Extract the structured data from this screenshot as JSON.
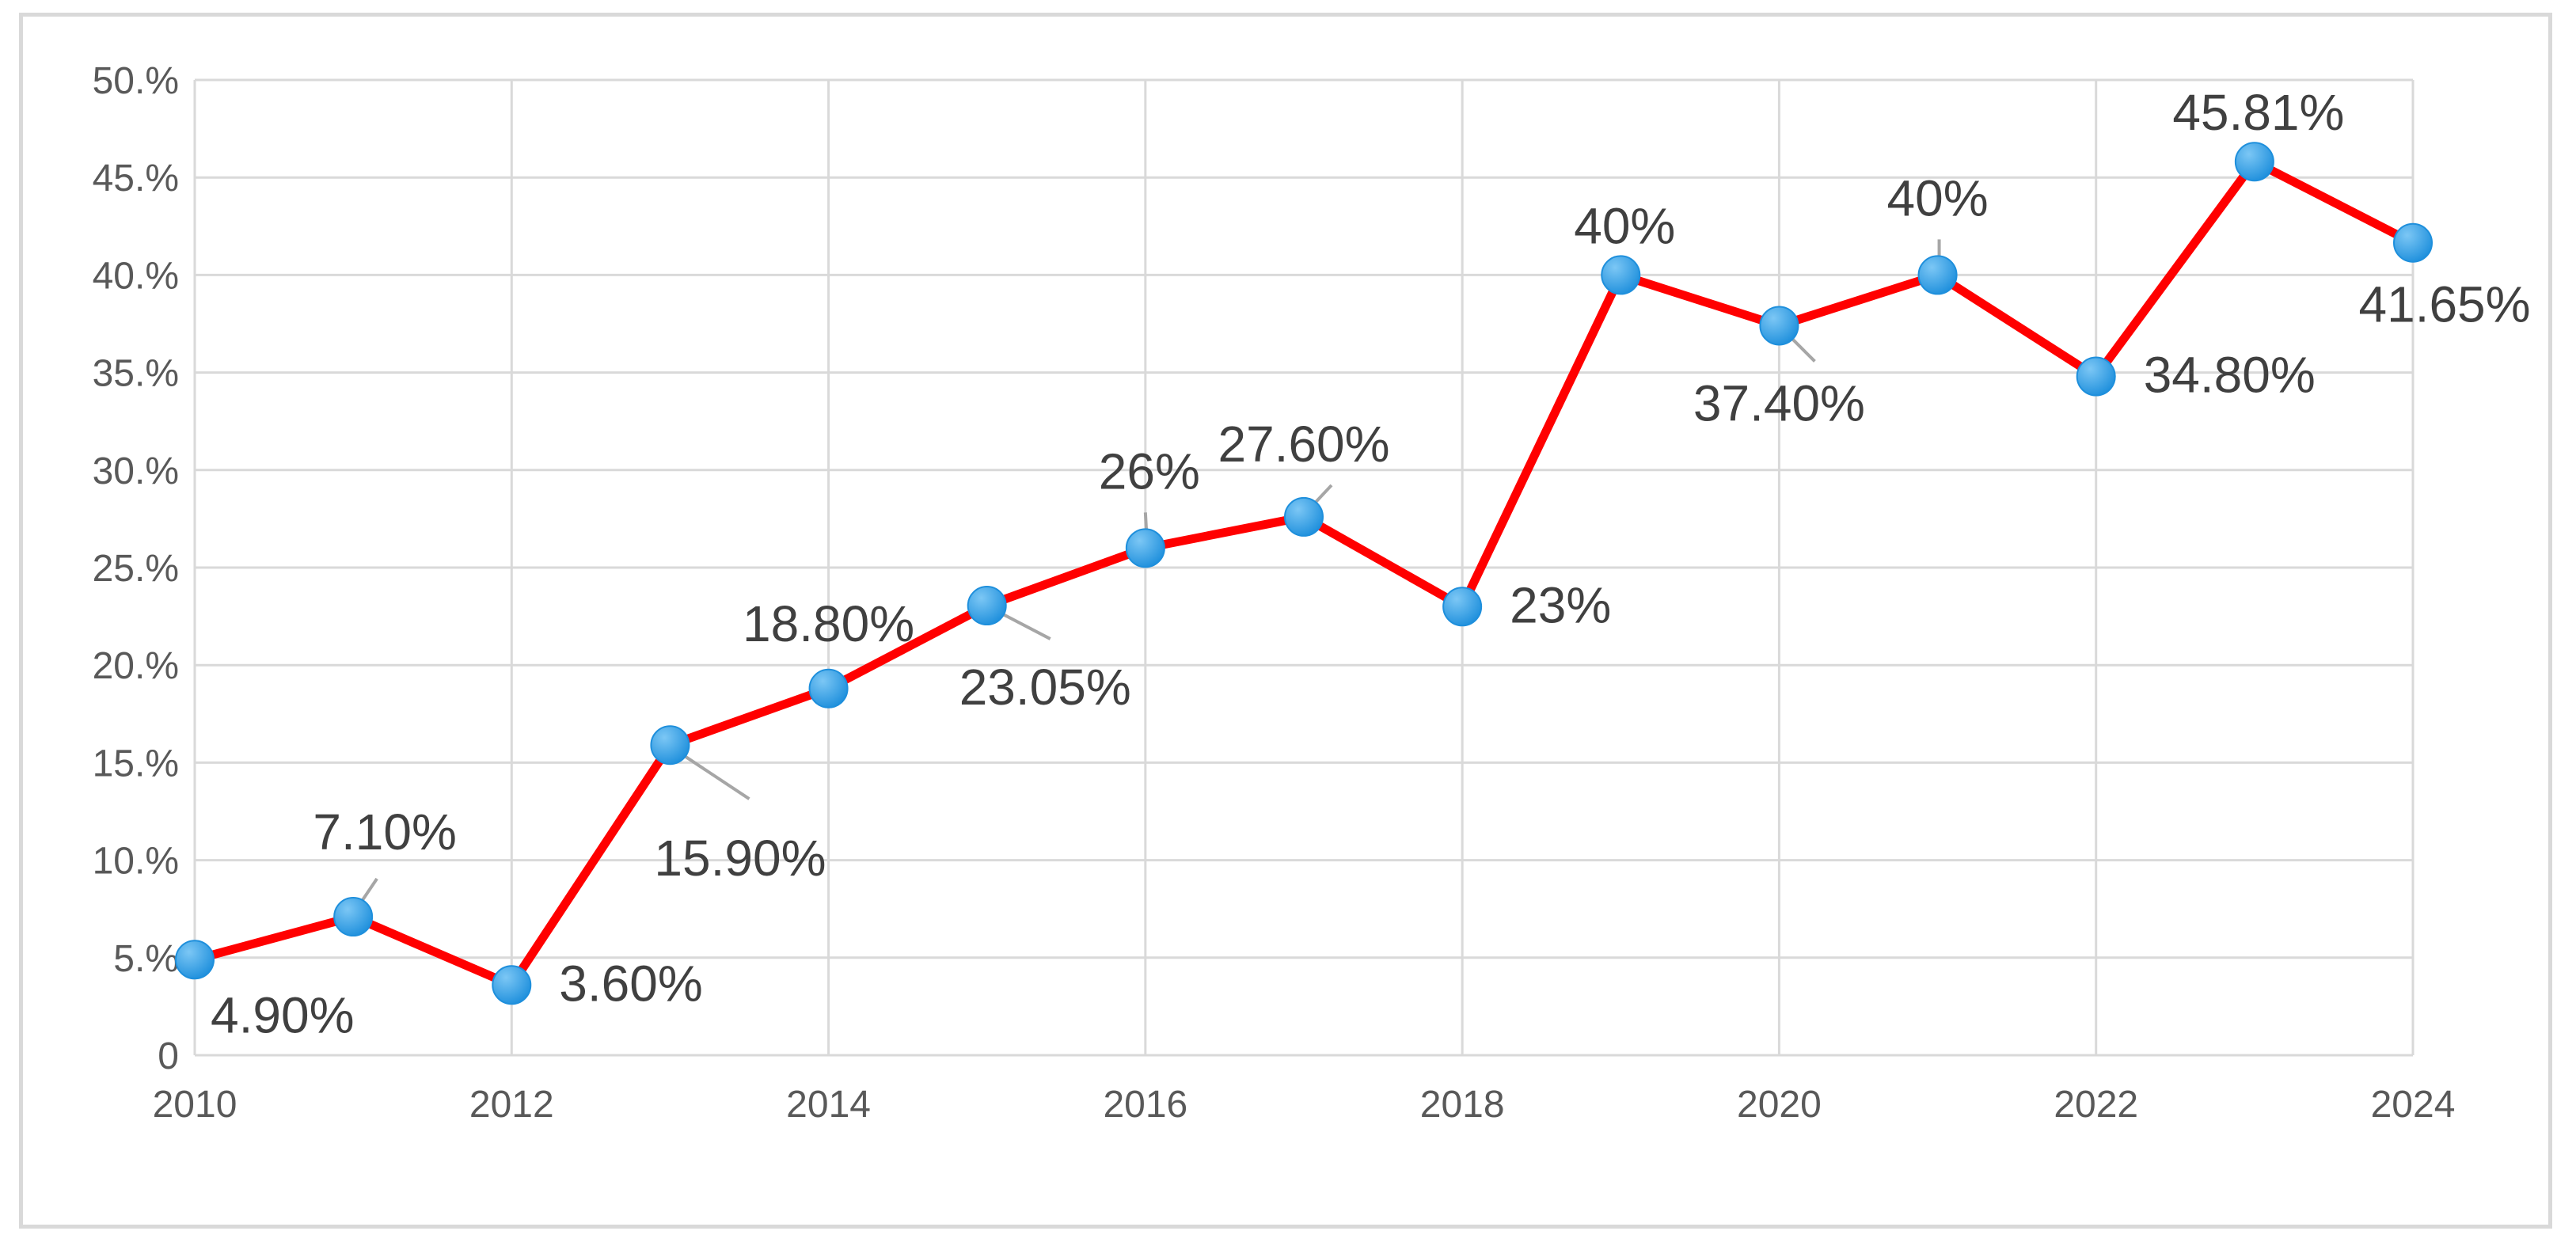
{
  "chart_data": {
    "type": "line",
    "title": "",
    "xlabel": "",
    "ylabel": "",
    "x": [
      2010,
      2011,
      2012,
      2013,
      2014,
      2015,
      2016,
      2017,
      2018,
      2019,
      2020,
      2021,
      2022,
      2023,
      2024
    ],
    "series": [
      {
        "values": [
          4.9,
          7.1,
          3.6,
          15.9,
          18.8,
          23.05,
          26,
          27.6,
          23,
          40,
          37.4,
          40,
          34.8,
          45.81,
          41.65
        ],
        "labels": [
          "4.90%",
          "7.10%",
          "3.60%",
          "15.90%",
          "18.80%",
          "23.05%",
          "26%",
          "27.60%",
          "23%",
          "40%",
          "37.40%",
          "40%",
          "34.80%",
          "45.81%",
          "41.65%"
        ]
      }
    ],
    "xlim": [
      2010,
      2024
    ],
    "ylim": [
      0,
      50
    ],
    "x_ticks": [
      2010,
      2012,
      2014,
      2016,
      2018,
      2020,
      2022,
      2024
    ],
    "x_tick_labels": [
      "2010",
      "2012",
      "2014",
      "2016",
      "2018",
      "2020",
      "2022",
      "2024"
    ],
    "y_ticks": [
      0,
      5,
      10,
      15,
      20,
      25,
      30,
      35,
      40,
      45,
      50
    ],
    "y_tick_labels": [
      "0",
      "5.%",
      "10.%",
      "15.%",
      "20.%",
      "25.%",
      "30.%",
      "35.%",
      "40.%",
      "45.%",
      "50.%"
    ],
    "grid": true,
    "legend": "none",
    "colors": {
      "line": "#ff0000",
      "marker": "#1e8fdc",
      "marker_highlight": "#7cc7f5",
      "grid": "#d9d9d9",
      "leader": "#a6a6a6",
      "tick_text": "#595959",
      "label_text": "#404040"
    }
  }
}
